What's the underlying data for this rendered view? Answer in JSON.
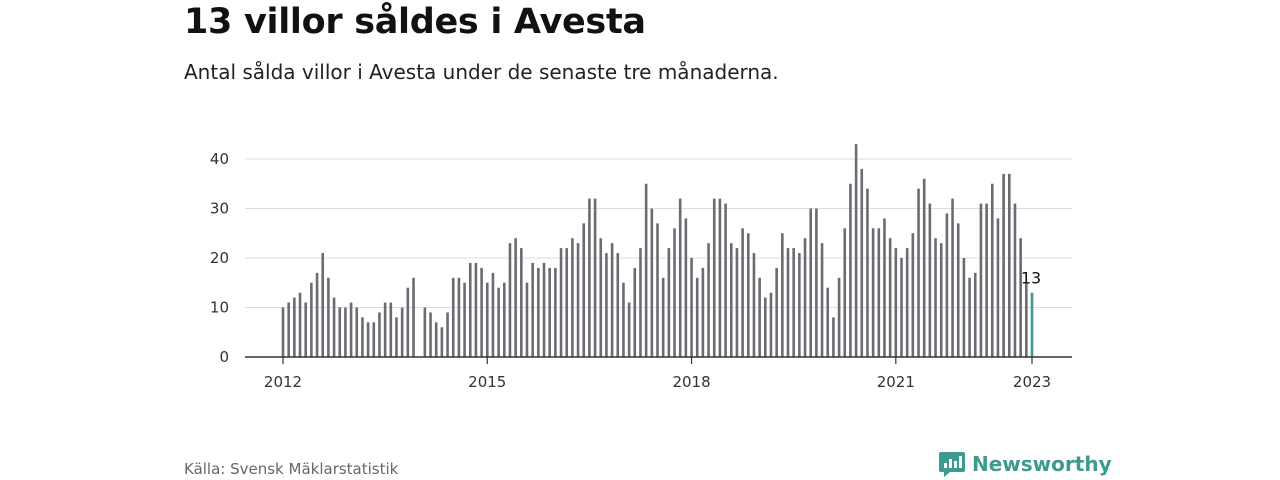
{
  "header": {
    "title": "13 villor såldes i Avesta",
    "subtitle": "Antal sålda villor i Avesta under de senaste tre månaderna."
  },
  "footer": {
    "source": "Källa: Svensk Mäklarstatistik",
    "brand_name": "Newsworthy",
    "brand_icon": "newsworthy-logo-icon",
    "brand_color": "#3c9a8e"
  },
  "chart_data": {
    "type": "bar",
    "x_start": "2012-01",
    "x_end": "2023-01",
    "x_step": "month",
    "values": [
      10,
      11,
      12,
      13,
      11,
      15,
      17,
      21,
      16,
      12,
      10,
      10,
      11,
      10,
      8,
      7,
      7,
      9,
      11,
      11,
      8,
      10,
      14,
      16,
      null,
      10,
      9,
      7,
      6,
      9,
      16,
      16,
      15,
      19,
      19,
      18,
      15,
      17,
      14,
      15,
      23,
      24,
      22,
      15,
      19,
      18,
      19,
      18,
      18,
      22,
      22,
      24,
      23,
      27,
      32,
      32,
      24,
      21,
      23,
      21,
      15,
      11,
      18,
      22,
      35,
      30,
      27,
      16,
      22,
      26,
      32,
      28,
      20,
      16,
      18,
      23,
      32,
      32,
      31,
      23,
      22,
      26,
      25,
      21,
      16,
      12,
      13,
      18,
      25,
      22,
      22,
      21,
      24,
      30,
      30,
      23,
      14,
      8,
      16,
      26,
      35,
      43,
      38,
      34,
      26,
      26,
      28,
      24,
      22,
      20,
      22,
      25,
      34,
      36,
      31,
      24,
      23,
      29,
      32,
      27,
      20,
      16,
      17,
      31,
      31,
      35,
      28,
      37,
      37,
      31,
      24,
      15,
      13
    ],
    "highlight_last": true,
    "highlight_value_label": "13",
    "ylim": [
      0,
      45
    ],
    "y_ticks": [
      0,
      10,
      20,
      30,
      40
    ],
    "x_ticks": [
      {
        "label": "2012",
        "month_index": 0
      },
      {
        "label": "2015",
        "month_index": 36
      },
      {
        "label": "2018",
        "month_index": 72
      },
      {
        "label": "2021",
        "month_index": 108
      },
      {
        "label": "2023",
        "month_index": 132
      }
    ],
    "colors": {
      "bar": "#6b6b72",
      "highlight": "#3c9a8e",
      "grid": "#dddddd",
      "axis": "#333333"
    },
    "grid": true,
    "legend": false
  }
}
